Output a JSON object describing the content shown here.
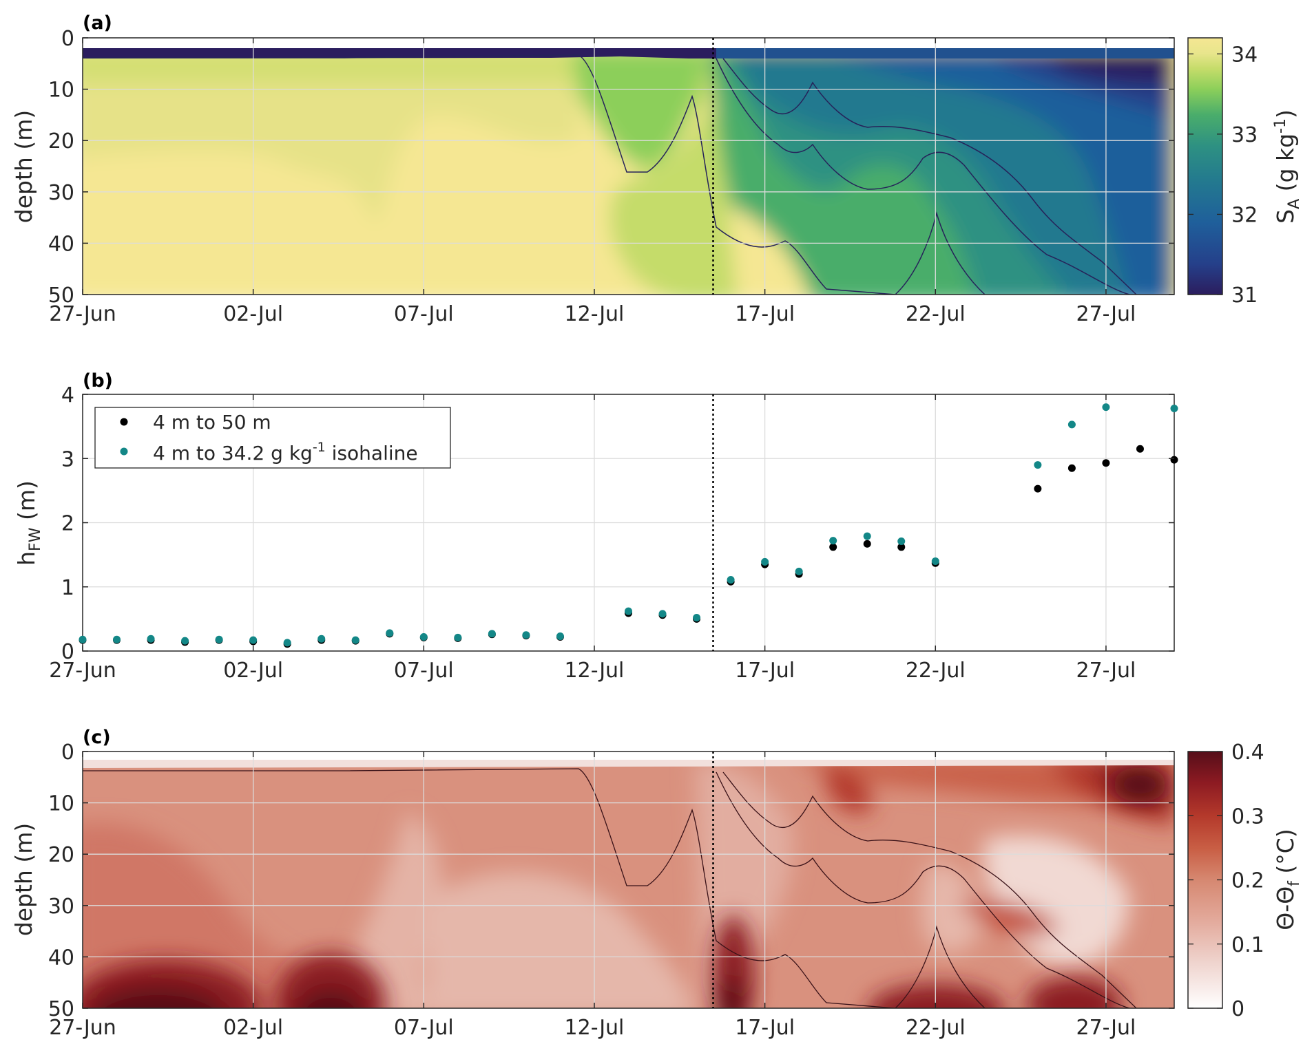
{
  "colors": {
    "salinity_ramp": [
      "#2b1d5e",
      "#25408a",
      "#1f5f9b",
      "#23798f",
      "#2e9182",
      "#4aad6b",
      "#8ccf5a",
      "#c5dc6a",
      "#e8e58c",
      "#f5e793"
    ],
    "temperature_ramp": [
      "#ffffff",
      "#efd3cd",
      "#e3aa9c",
      "#d68871",
      "#c95f45",
      "#b4392b",
      "#8c1a22",
      "#560e19"
    ],
    "dotted_line": "#000000",
    "series_black": "#000000",
    "series_teal": "#138787",
    "contour_a": "#26235a",
    "contour_c": "#3a1218"
  },
  "x_ticks": [
    "27-Jun",
    "02-Jul",
    "07-Jul",
    "12-Jul",
    "17-Jul",
    "22-Jul",
    "27-Jul"
  ],
  "chart_data": [
    {
      "panel": "(a)",
      "type": "heatmap",
      "title": "",
      "ylabel": "depth (m)",
      "x_ticks": [
        "27-Jun",
        "02-Jul",
        "07-Jul",
        "12-Jul",
        "17-Jul",
        "22-Jul",
        "27-Jul"
      ],
      "x_range_days": [
        0,
        32
      ],
      "y_ticks": [
        "0",
        "10",
        "20",
        "30",
        "40",
        "50"
      ],
      "ylim": [
        50,
        0
      ],
      "y_direction": "down",
      "colorbar": {
        "label_main": "S",
        "label_sub": "A",
        "label_unit": " (g kg",
        "label_sup": "-1",
        "label_close": ")",
        "ticks": [
          "34",
          "33",
          "32",
          "31"
        ],
        "range": [
          31,
          34.2
        ]
      },
      "vertical_line_day": 18.6,
      "grid": true,
      "description_fields": {
        "surface_layer_depth_m": 4
      }
    },
    {
      "panel": "(b)",
      "type": "scatter",
      "title": "",
      "ylabel_main": "h",
      "ylabel_sub": "FW",
      "ylabel_unit": " (m)",
      "x_ticks": [
        "27-Jun",
        "02-Jul",
        "07-Jul",
        "12-Jul",
        "17-Jul",
        "22-Jul",
        "27-Jul"
      ],
      "y_ticks": [
        "0",
        "1",
        "2",
        "3",
        "4"
      ],
      "ylim": [
        0,
        4
      ],
      "grid": true,
      "legend_position": "top-left",
      "vertical_line_day": 18.6,
      "series": [
        {
          "name": "4 m to 50 m",
          "color": "#000000",
          "points": [
            [
              0,
              0.17
            ],
            [
              1,
              0.17
            ],
            [
              2,
              0.17
            ],
            [
              3,
              0.14
            ],
            [
              4,
              0.17
            ],
            [
              5,
              0.15
            ],
            [
              6,
              0.11
            ],
            [
              7,
              0.17
            ],
            [
              8,
              0.16
            ],
            [
              9,
              0.27
            ],
            [
              10,
              0.21
            ],
            [
              11,
              0.2
            ],
            [
              12,
              0.26
            ],
            [
              13,
              0.24
            ],
            [
              14,
              0.22
            ],
            [
              16,
              0.59
            ],
            [
              17,
              0.56
            ],
            [
              18,
              0.5
            ],
            [
              19,
              1.08
            ],
            [
              20,
              1.35
            ],
            [
              21,
              1.2
            ],
            [
              22,
              1.62
            ],
            [
              23,
              1.67
            ],
            [
              24,
              1.62
            ],
            [
              25,
              1.37
            ],
            [
              28,
              2.53
            ],
            [
              29,
              2.85
            ],
            [
              30,
              2.93
            ],
            [
              31,
              3.15
            ],
            [
              32,
              2.98
            ]
          ]
        },
        {
          "name": "4 m to 34.2 g kg",
          "name_sup": "-1",
          "name_tail": " isohaline",
          "color": "#138787",
          "points": [
            [
              0,
              0.18
            ],
            [
              1,
              0.18
            ],
            [
              2,
              0.19
            ],
            [
              3,
              0.16
            ],
            [
              4,
              0.18
            ],
            [
              5,
              0.17
            ],
            [
              6,
              0.13
            ],
            [
              7,
              0.19
            ],
            [
              8,
              0.17
            ],
            [
              9,
              0.28
            ],
            [
              10,
              0.22
            ],
            [
              11,
              0.21
            ],
            [
              12,
              0.27
            ],
            [
              13,
              0.25
            ],
            [
              14,
              0.23
            ],
            [
              16,
              0.62
            ],
            [
              17,
              0.58
            ],
            [
              18,
              0.52
            ],
            [
              19,
              1.11
            ],
            [
              20,
              1.39
            ],
            [
              21,
              1.24
            ],
            [
              22,
              1.72
            ],
            [
              23,
              1.79
            ],
            [
              24,
              1.71
            ],
            [
              25,
              1.4
            ],
            [
              28,
              2.9
            ],
            [
              29,
              3.53
            ],
            [
              30,
              3.8
            ],
            [
              32,
              3.78
            ]
          ]
        }
      ]
    },
    {
      "panel": "(c)",
      "type": "heatmap",
      "title": "",
      "ylabel": "depth (m)",
      "x_ticks": [
        "27-Jun",
        "02-Jul",
        "07-Jul",
        "12-Jul",
        "17-Jul",
        "22-Jul",
        "27-Jul"
      ],
      "y_ticks": [
        "0",
        "10",
        "20",
        "30",
        "40",
        "50"
      ],
      "ylim": [
        50,
        0
      ],
      "colorbar": {
        "label_main": "Θ-Θ",
        "label_sub": "f",
        "label_unit": " (°C)",
        "ticks": [
          "0.4",
          "0.3",
          "0.2",
          "0.1",
          "0"
        ],
        "range": [
          0,
          0.4
        ]
      },
      "vertical_line_day": 18.6,
      "grid": true
    }
  ],
  "panels": {
    "a": {
      "label": "(a)",
      "ylabel": "depth (m)",
      "cb_title_main": "S",
      "cb_title_sub": "A",
      "cb_title_rest": " (g kg",
      "cb_title_sup": "-1",
      "cb_title_close": ")"
    },
    "b": {
      "label": "(b)",
      "ylabel_main": "h",
      "ylabel_sub": "FW",
      "ylabel_rest": " (m)",
      "legend_1": "4 m to 50 m",
      "legend_2_main": "4 m to 34.2 g kg",
      "legend_2_sup": "-1",
      "legend_2_tail": " isohaline"
    },
    "c": {
      "label": "(c)",
      "ylabel": "depth (m)",
      "cb_title_main": "Θ-Θ",
      "cb_title_sub": "f",
      "cb_title_rest": " (°C)"
    }
  }
}
